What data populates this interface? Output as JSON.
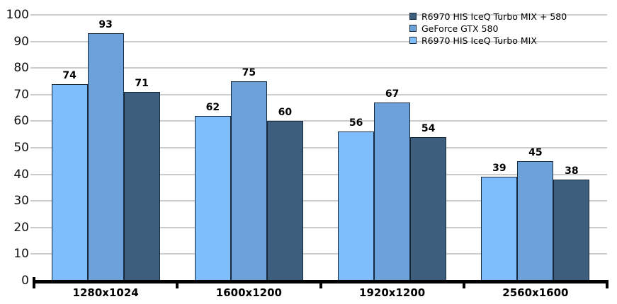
{
  "chart_data": {
    "type": "bar",
    "title": "",
    "xlabel": "",
    "ylabel": "",
    "categories": [
      "1280x1024",
      "1600x1200",
      "1920x1200",
      "2560x1600"
    ],
    "series": [
      {
        "name": "R6970 HIS IceQ Turbo MIX",
        "color": "#7EBEFC",
        "values": [
          74,
          62,
          56,
          39
        ]
      },
      {
        "name": "GeForce GTX 580",
        "color": "#6DA1D9",
        "values": [
          93,
          75,
          67,
          45
        ]
      },
      {
        "name": "R6970 HIS IceQ Turbo MIX + 580",
        "color": "#3E5E7D",
        "values": [
          71,
          60,
          54,
          38
        ]
      }
    ],
    "legend": [
      {
        "label": "R6970 HIS IceQ Turbo MIX + 580",
        "color": "#3E5E7D"
      },
      {
        "label": "GeForce GTX 580",
        "color": "#6DA1D9"
      },
      {
        "label": "R6970 HIS IceQ Turbo MIX",
        "color": "#7EBEFC"
      }
    ],
    "legend_position": "top-right",
    "ylim": [
      0,
      100
    ],
    "y_ticks": [
      0,
      10,
      20,
      30,
      40,
      50,
      60,
      70,
      80,
      90,
      100
    ],
    "grid": true,
    "value_labels": true,
    "colors": {
      "bar_border": "#16293c",
      "gridline": "#cccccc",
      "axis": "#000000",
      "background": "#ffffff",
      "text": "#000000"
    }
  }
}
